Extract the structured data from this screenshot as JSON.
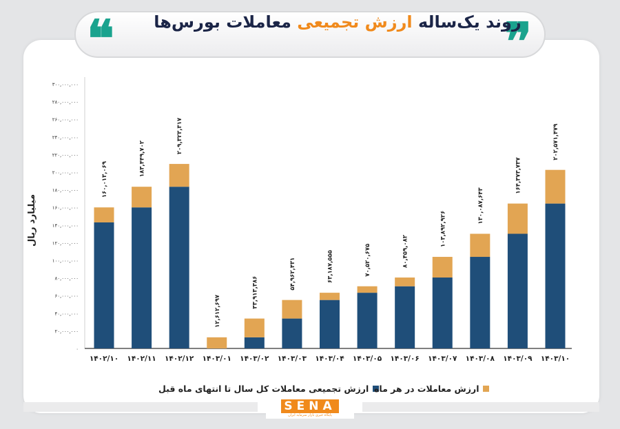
{
  "header": {
    "title_part1": "روند یک‌ساله",
    "title_highlight": "ارزش تجمیعی",
    "title_part2": "معاملات بورس‌ها",
    "quote_open": "❝",
    "quote_close": "❞"
  },
  "chart_data": {
    "type": "bar",
    "stacked": true,
    "title": "روند یک‌ساله ارزش تجمیعی معاملات بورس‌ها",
    "xlabel": "",
    "ylabel": "میلیارد ریال",
    "ylim": [
      0,
      300000000
    ],
    "grid": false,
    "legend_position": "bottom",
    "categories": [
      "۱۴۰۲/۱۰",
      "۱۴۰۲/۱۱",
      "۱۴۰۲/۱۲",
      "۱۴۰۳/۰۱",
      "۱۴۰۳/۰۲",
      "۱۴۰۳/۰۳",
      "۱۴۰۳/۰۴",
      "۱۴۰۳/۰۵",
      "۱۴۰۳/۰۶",
      "۱۴۰۳/۰۷",
      "۱۴۰۳/۰۸",
      "۱۴۰۳/۰۹",
      "۱۴۰۳/۱۰"
    ],
    "y_ticks": [
      0,
      20000000,
      40000000,
      60000000,
      80000000,
      100000000,
      120000000,
      140000000,
      160000000,
      180000000,
      200000000,
      220000000,
      240000000,
      260000000,
      280000000,
      300000000
    ],
    "y_tick_labels": [
      "۰",
      "۲۰,۰۰۰,۰۰۰",
      "۴۰,۰۰۰,۰۰۰",
      "۶۰,۰۰۰,۰۰۰",
      "۸۰,۰۰۰,۰۰۰",
      "۱۰۰,۰۰۰,۰۰۰",
      "۱۲۰,۰۰۰,۰۰۰",
      "۱۴۰,۰۰۰,۰۰۰",
      "۱۶۰,۰۰۰,۰۰۰",
      "۱۸۰,۰۰۰,۰۰۰",
      "۲۰۰,۰۰۰,۰۰۰",
      "۲۲۰,۰۰۰,۰۰۰",
      "۲۴۰,۰۰۰,۰۰۰",
      "۲۶۰,۰۰۰,۰۰۰",
      "۲۸۰,۰۰۰,۰۰۰",
      "۳۰۰,۰۰۰,۰۰۰"
    ],
    "series": [
      {
        "name": "ارزش تجمیعی معاملات کل سال تا انتهای ماه قبل",
        "color": "#1f4e79",
        "values": [
          143000000,
          160013069,
          183449702,
          0,
          12612697,
          33913386,
          54962431,
          63187555,
          70520675,
          80459082,
          103892926,
          130087643,
          164373737
        ]
      },
      {
        "name": "ارزش معاملات در هر ماه",
        "color": "#e2a553",
        "values": [
          17013069,
          23436633,
          25873615,
          12612697,
          21300689,
          21049045,
          8225124,
          7333120,
          9938407,
          23433844,
          26194717,
          34286094,
          38197742
        ]
      }
    ],
    "totals": [
      160013069,
      183449702,
      209323317,
      12612697,
      33913386,
      54962431,
      63187555,
      70520675,
      80459082,
      103892926,
      130087643,
      164373737,
      202571479
    ],
    "total_labels": [
      "۱۶۰,۰۱۳,۰۶۹",
      "۱۸۳,۴۴۹,۷۰۲",
      "۲۰۹,۳۲۳,۳۱۷",
      "۱۲,۶۱۲,۶۹۷",
      "۳۳,۹۱۳,۳۸۶",
      "۵۴,۹۶۲,۴۳۱",
      "۶۳,۱۸۷,۵۵۵",
      "۷۰,۵۲۰,۶۷۵",
      "۸۰,۴۵۹,۰۸۲",
      "۱۰۳,۸۹۲,۹۲۶",
      "۱۳۰,۰۸۷,۶۴۳",
      "۱۶۴,۳۷۳,۷۳۷",
      "۲۰۲,۵۷۱,۴۷۹"
    ]
  },
  "legend": {
    "cumulative": "ارزش تجمیعی معاملات کل سال تا انتهای ماه قبل",
    "monthly": "ارزش معاملات در هر ماه"
  },
  "logo": {
    "text": "SENA",
    "subtitle": "پایگاه خبری بازار سرمایه ایران",
    "color": "#f08a1c"
  }
}
